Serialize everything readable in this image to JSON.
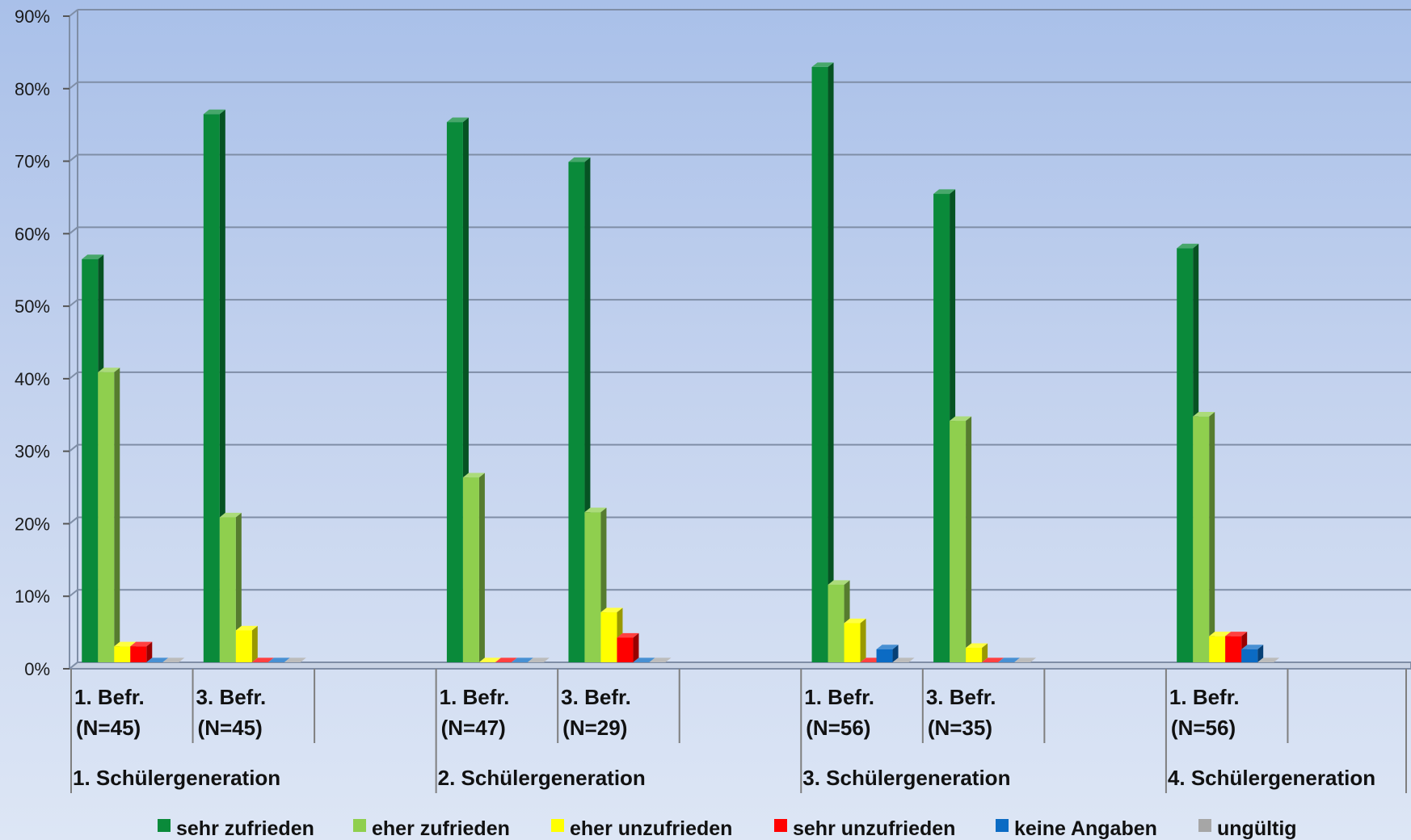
{
  "chart_data": {
    "type": "bar",
    "style": "3d-clustered-column",
    "ylim": [
      0,
      90
    ],
    "yticks": [
      "0%",
      "10%",
      "20%",
      "30%",
      "40%",
      "50%",
      "60%",
      "70%",
      "80%",
      "90%"
    ],
    "grid": true,
    "legend_position": "bottom",
    "groups": [
      {
        "label": "1. Schülergeneration",
        "categories": [
          {
            "line1": "1. Befr.",
            "line2": "(N=45)"
          },
          {
            "line1": "3. Befr.",
            "line2": "(N=45)"
          },
          null
        ]
      },
      {
        "label": "2. Schülergeneration",
        "categories": [
          {
            "line1": "1. Befr.",
            "line2": "(N=47)"
          },
          {
            "line1": "3. Befr.",
            "line2": "(N=29)"
          },
          null
        ]
      },
      {
        "label": "3. Schülergeneration",
        "categories": [
          {
            "line1": "1. Befr.",
            "line2": "(N=56)"
          },
          {
            "line1": "3. Befr.",
            "line2": "(N=35)"
          },
          null
        ]
      },
      {
        "label": "4. Schülergeneration",
        "categories": [
          {
            "line1": "1. Befr.",
            "line2": "(N=56)"
          },
          null
        ]
      }
    ],
    "series": [
      {
        "name": "sehr zufrieden",
        "color": "#0a8a3a",
        "values": [
          55.6,
          75.6,
          74.5,
          69.0,
          82.1,
          64.6,
          57.1
        ]
      },
      {
        "name": "eher zufrieden",
        "color": "#8fcf4e",
        "values": [
          40.0,
          20.0,
          25.5,
          20.7,
          10.7,
          33.3,
          33.9
        ]
      },
      {
        "name": "eher unzufrieden",
        "color": "#ffff00",
        "values": [
          2.2,
          4.4,
          0,
          6.9,
          5.4,
          2.0,
          3.6
        ]
      },
      {
        "name": "sehr unzufrieden",
        "color": "#ff0000",
        "values": [
          2.2,
          0,
          0,
          3.4,
          0,
          0,
          3.6
        ]
      },
      {
        "name": "keine Angaben",
        "color": "#0b6bc4",
        "values": [
          0,
          0,
          0,
          0,
          1.8,
          0,
          1.8
        ]
      },
      {
        "name": "ungültig",
        "color": "#a6a6a6",
        "values": [
          0,
          0,
          0,
          0,
          0,
          0,
          0
        ]
      }
    ]
  }
}
